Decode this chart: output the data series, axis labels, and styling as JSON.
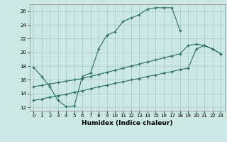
{
  "xlabel": "Humidex (Indice chaleur)",
  "line_color": "#2a6e64",
  "bg_color": "#cce8e4",
  "grid_color": "#aad0cc",
  "xlim": [
    -0.5,
    23.5
  ],
  "ylim": [
    11.5,
    27.0
  ],
  "xticks": [
    0,
    1,
    2,
    3,
    4,
    5,
    6,
    7,
    8,
    9,
    10,
    11,
    12,
    13,
    14,
    15,
    16,
    17,
    18,
    19,
    20,
    21,
    22,
    23
  ],
  "yticks": [
    12,
    14,
    16,
    18,
    20,
    22,
    24,
    26
  ],
  "line1_x": [
    0,
    1,
    2,
    3,
    4,
    5,
    6,
    7,
    8,
    9,
    10,
    11,
    12,
    13,
    14,
    15,
    16,
    17,
    18
  ],
  "line1_y": [
    17.8,
    16.5,
    15.0,
    13.0,
    12.1,
    12.2,
    16.5,
    17.0,
    20.5,
    22.5,
    23.0,
    24.5,
    25.0,
    25.5,
    26.3,
    26.5,
    26.5,
    26.5,
    23.2
  ],
  "line2_x": [
    0,
    1,
    2,
    3,
    4,
    5,
    6,
    7,
    8,
    9,
    10,
    11,
    12,
    13,
    14,
    15,
    16,
    17,
    18,
    19,
    20,
    21,
    22,
    23
  ],
  "line2_y": [
    15.0,
    15.2,
    15.4,
    15.6,
    15.8,
    16.0,
    16.2,
    16.5,
    16.8,
    17.1,
    17.4,
    17.7,
    18.0,
    18.3,
    18.6,
    18.9,
    19.2,
    19.5,
    19.8,
    21.0,
    21.2,
    21.0,
    20.5,
    19.8
  ],
  "line3_x": [
    0,
    1,
    2,
    3,
    4,
    5,
    6,
    7,
    8,
    9,
    10,
    11,
    12,
    13,
    14,
    15,
    16,
    17,
    18,
    19,
    20,
    21,
    22,
    23
  ],
  "line3_y": [
    13.0,
    13.2,
    13.5,
    13.7,
    13.9,
    14.2,
    14.4,
    14.7,
    15.0,
    15.2,
    15.5,
    15.7,
    16.0,
    16.2,
    16.5,
    16.7,
    17.0,
    17.2,
    17.5,
    17.7,
    20.5,
    21.0,
    20.5,
    19.8
  ]
}
